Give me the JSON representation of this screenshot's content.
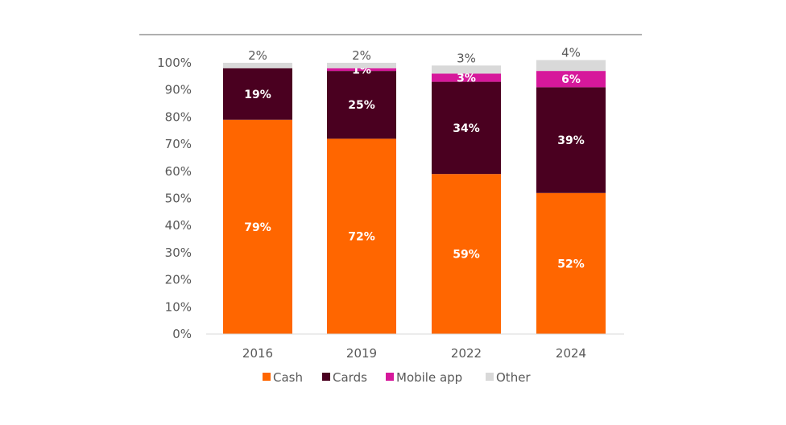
{
  "chart_data": {
    "type": "bar",
    "stacked": true,
    "title": "",
    "xlabel": "",
    "ylabel": "",
    "ylim": [
      0,
      100
    ],
    "y_ticks": [
      "0%",
      "10%",
      "20%",
      "30%",
      "40%",
      "50%",
      "60%",
      "70%",
      "80%",
      "90%",
      "100%"
    ],
    "categories": [
      "2016",
      "2019",
      "2022",
      "2024"
    ],
    "series": [
      {
        "name": "Cash",
        "color": "#ff6600",
        "values": [
          79,
          72,
          59,
          52
        ],
        "labels": [
          "79%",
          "72%",
          "59%",
          "52%"
        ]
      },
      {
        "name": "Cards",
        "color": "#4a0020",
        "values": [
          19,
          25,
          34,
          39
        ],
        "labels": [
          "19%",
          "25%",
          "34%",
          "39%"
        ]
      },
      {
        "name": "Mobile app",
        "color": "#d6189b",
        "values": [
          0,
          1,
          3,
          6
        ],
        "labels": [
          "",
          "1%",
          "3%",
          "6%"
        ]
      },
      {
        "name": "Other",
        "color": "#d9d9d9",
        "values": [
          2,
          2,
          3,
          4
        ],
        "labels": [
          "2%",
          "2%",
          "3%",
          "4%"
        ]
      }
    ],
    "grid": false,
    "legend": "bottom"
  }
}
